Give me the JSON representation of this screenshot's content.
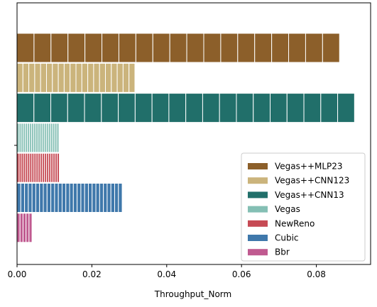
{
  "chart_data": {
    "type": "bar",
    "orientation": "horizontal",
    "title": "",
    "xlabel": "Throughput_Norm",
    "ylabel": "",
    "xlim": [
      0,
      0.0945
    ],
    "x_ticks": [
      0.0,
      0.02,
      0.04,
      0.06,
      0.08
    ],
    "x_tick_labels": [
      "0.00",
      "0.02",
      "0.04",
      "0.06",
      "0.08"
    ],
    "grid": false,
    "legend_position": "lower-right",
    "series": [
      {
        "name": "Vegas++MLP23",
        "value": 0.0862,
        "color": "#8c5f2a",
        "segments": 19
      },
      {
        "name": "Vegas++CNN123",
        "value": 0.0315,
        "color": "#cbb47c",
        "segments": 20
      },
      {
        "name": "Vegas++CNN13",
        "value": 0.0902,
        "color": "#216f6a",
        "segments": 20
      },
      {
        "name": "Vegas",
        "value": 0.0112,
        "color": "#84bfb4",
        "segments": 20
      },
      {
        "name": "NewReno",
        "value": 0.0113,
        "color": "#c64a54",
        "segments": 20
      },
      {
        "name": "Cubic",
        "value": 0.0281,
        "color": "#3f78ab",
        "segments": 28
      },
      {
        "name": "Bbr",
        "value": 0.004,
        "color": "#c05a90",
        "segments": 5
      }
    ]
  }
}
